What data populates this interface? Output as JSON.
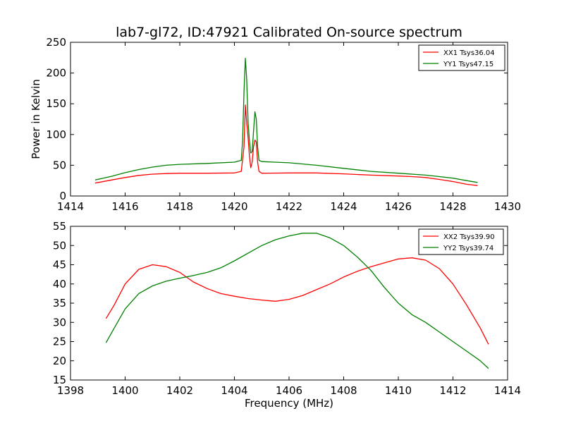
{
  "figure": {
    "title": "lab7-gl72, ID:47921 Calibrated On-source spectrum"
  },
  "colors": {
    "red": "#ff0000",
    "green": "#008000",
    "axis": "#000000",
    "background": "#ffffff"
  },
  "chart_data": [
    {
      "type": "line",
      "title": "lab7-gl72, ID:47921 Calibrated On-source spectrum",
      "xlabel": "",
      "ylabel": "Power in Kelvin",
      "xlim": [
        1414,
        1430
      ],
      "ylim": [
        0,
        250
      ],
      "xticks": [
        "1414",
        "1416",
        "1418",
        "1420",
        "1422",
        "1424",
        "1426",
        "1428",
        "1430"
      ],
      "yticks": [
        "0",
        "50",
        "100",
        "150",
        "200",
        "250"
      ],
      "legend_position": "top-right",
      "grid": false,
      "series": [
        {
          "name": "XX1 Tsys36.04",
          "color": "#ff0000",
          "x": [
            1414.9,
            1415.5,
            1416.0,
            1416.5,
            1417.0,
            1417.5,
            1418.0,
            1419.0,
            1420.0,
            1420.25,
            1420.35,
            1420.4,
            1420.45,
            1420.5,
            1420.55,
            1420.6,
            1420.65,
            1420.7,
            1420.75,
            1420.8,
            1420.85,
            1420.9,
            1421.0,
            1422.0,
            1423.0,
            1424.0,
            1425.0,
            1426.0,
            1426.5,
            1427.0,
            1427.5,
            1428.0,
            1428.5,
            1428.9
          ],
          "y": [
            21,
            26,
            30,
            33.5,
            35.5,
            36.5,
            37,
            37,
            37.5,
            40,
            80,
            148,
            120,
            95,
            65,
            46,
            55,
            80,
            91,
            88,
            55,
            40,
            37,
            37.5,
            37.5,
            36,
            34,
            32.5,
            31.5,
            30,
            27,
            23.5,
            19,
            17
          ]
        },
        {
          "name": "YY1 Tsys47.15",
          "color": "#008000",
          "x": [
            1414.9,
            1415.5,
            1416.0,
            1416.5,
            1417.0,
            1417.5,
            1418.0,
            1419.0,
            1420.0,
            1420.25,
            1420.3,
            1420.35,
            1420.4,
            1420.45,
            1420.5,
            1420.55,
            1420.6,
            1420.65,
            1420.7,
            1420.75,
            1420.8,
            1420.85,
            1420.9,
            1421.0,
            1422.0,
            1423.0,
            1424.0,
            1425.0,
            1426.0,
            1427.0,
            1427.5,
            1428.0,
            1428.5,
            1428.9
          ],
          "y": [
            26,
            32,
            38,
            43,
            47,
            50,
            51.5,
            53,
            55,
            58,
            90,
            170,
            224,
            190,
            120,
            90,
            70,
            72,
            105,
            137,
            125,
            80,
            58,
            56,
            54,
            50,
            45,
            40,
            37,
            34,
            31.5,
            29,
            25,
            22
          ]
        }
      ]
    },
    {
      "type": "line",
      "title": "",
      "xlabel": "Frequency (MHz)",
      "ylabel": "",
      "xlim": [
        1398,
        1414
      ],
      "ylim": [
        15,
        55
      ],
      "xticks": [
        "1398",
        "1400",
        "1402",
        "1404",
        "1406",
        "1408",
        "1410",
        "1412",
        "1414"
      ],
      "yticks": [
        "15",
        "20",
        "25",
        "30",
        "35",
        "40",
        "45",
        "50",
        "55"
      ],
      "legend_position": "top-right",
      "grid": false,
      "series": [
        {
          "name": "XX2 Tsys39.90",
          "color": "#ff0000",
          "x": [
            1399.3,
            1399.6,
            1400.0,
            1400.5,
            1401.0,
            1401.5,
            1402.0,
            1402.5,
            1403.0,
            1403.5,
            1404.0,
            1404.5,
            1405.0,
            1405.5,
            1406.0,
            1406.5,
            1407.0,
            1407.5,
            1408.0,
            1408.5,
            1409.0,
            1409.5,
            1410.0,
            1410.5,
            1411.0,
            1411.5,
            1412.0,
            1412.5,
            1413.0,
            1413.3
          ],
          "y": [
            31,
            34.5,
            40,
            43.8,
            45,
            44.5,
            43,
            40.5,
            38.8,
            37.5,
            36.8,
            36.2,
            35.8,
            35.5,
            36,
            37,
            38.5,
            40,
            41.8,
            43.3,
            44.5,
            45.5,
            46.5,
            46.8,
            46.2,
            44,
            40,
            34.5,
            28.5,
            24.3
          ]
        },
        {
          "name": "YY2 Tsys39.74",
          "color": "#008000",
          "x": [
            1399.3,
            1399.6,
            1400.0,
            1400.5,
            1401.0,
            1401.5,
            1402.0,
            1402.5,
            1403.0,
            1403.5,
            1404.0,
            1404.5,
            1405.0,
            1405.5,
            1406.0,
            1406.5,
            1407.0,
            1407.5,
            1408.0,
            1408.5,
            1409.0,
            1409.5,
            1410.0,
            1410.5,
            1411.0,
            1411.5,
            1412.0,
            1412.5,
            1413.0,
            1413.3
          ],
          "y": [
            24.7,
            28.5,
            33.5,
            37.5,
            39.5,
            40.7,
            41.5,
            42.2,
            43,
            44.2,
            46,
            48,
            50,
            51.5,
            52.5,
            53.2,
            53.2,
            52,
            50,
            47,
            43.5,
            39,
            35,
            32,
            30,
            27.5,
            25,
            22.5,
            20,
            18
          ]
        }
      ]
    }
  ]
}
